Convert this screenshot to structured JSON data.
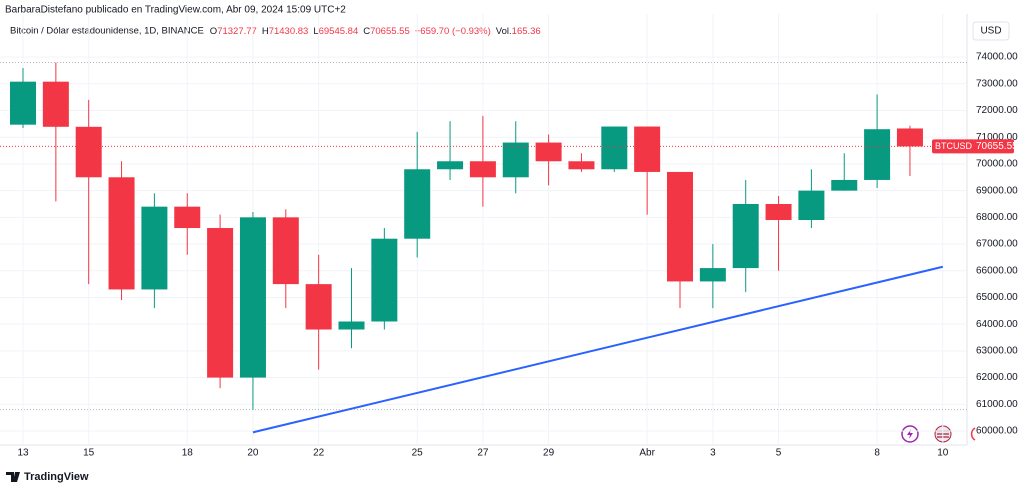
{
  "header": "BarbaraDistefano publicado en TradingView.com, Abr 09, 2024 15:09 UTC+2",
  "footer": "TradingView",
  "chart_data": {
    "type": "candlestick",
    "title": "Bitcoin / Dólar estadounidense, 1D, BINANCE",
    "info": [
      {
        "key": "O",
        "value": "71327.77"
      },
      {
        "key": "H",
        "value": "71430.83"
      },
      {
        "key": "L",
        "value": "69545.84"
      },
      {
        "key": "C",
        "value": "70655.55"
      },
      {
        "value": "−659.70 (−0.93%)"
      },
      {
        "key": "Vol.",
        "value": "165.36"
      }
    ],
    "currency": "USD",
    "categories": [
      "13",
      null,
      "15",
      null,
      null,
      "18",
      null,
      "20",
      null,
      "22",
      null,
      null,
      "25",
      null,
      "27",
      null,
      "29",
      null,
      null,
      "Abr",
      null,
      "3",
      null,
      "5",
      null,
      null,
      "8",
      null,
      "10"
    ],
    "open": [
      71470,
      73080,
      71390,
      69500,
      65300,
      68400,
      67600,
      62000,
      68000,
      65500,
      63800,
      64100,
      67200,
      69800,
      70100,
      69500,
      70800,
      70100,
      69800,
      71400,
      69700,
      65600,
      66100,
      68500,
      67900,
      69000,
      69400,
      71327.77,
      null
    ],
    "high": [
      73590,
      73800,
      72400,
      70100,
      68900,
      68900,
      68100,
      68200,
      68300,
      66600,
      66100,
      67600,
      71200,
      71600,
      71800,
      71600,
      71100,
      70400,
      71400,
      71400,
      69700,
      67000,
      69400,
      68800,
      69800,
      70400,
      72600,
      71430.83,
      null
    ],
    "low": [
      71344,
      68600,
      65500,
      64900,
      64600,
      66600,
      61600,
      60800,
      64600,
      62300,
      63100,
      63800,
      66500,
      69400,
      68400,
      68900,
      69200,
      69700,
      69700,
      68100,
      64600,
      64600,
      65200,
      66000,
      67600,
      69000,
      69100,
      69545.84,
      null
    ],
    "close": [
      73080,
      71390,
      69500,
      65300,
      68400,
      67600,
      62000,
      68000,
      65500,
      63800,
      64100,
      67200,
      69800,
      70100,
      69500,
      70800,
      70100,
      69800,
      71400,
      69700,
      65600,
      66100,
      68500,
      67900,
      69000,
      69400,
      71300,
      70655.55,
      null
    ],
    "up_color": "#089981",
    "down_color": "#f23645",
    "ylim": [
      59476,
      75389
    ],
    "yticks": [
      {
        "value": 60000,
        "label": "60000.00"
      },
      {
        "value": 61000,
        "label": "61000.00"
      },
      {
        "value": 62000,
        "label": "62000.00"
      },
      {
        "value": 63000,
        "label": "63000.00"
      },
      {
        "value": 64000,
        "label": "64000.00"
      },
      {
        "value": 65000,
        "label": "65000.00"
      },
      {
        "value": 66000,
        "label": "66000.00"
      },
      {
        "value": 67000,
        "label": "67000.00"
      },
      {
        "value": 68000,
        "label": "68000.00"
      },
      {
        "value": 69000,
        "label": "69000.00"
      },
      {
        "value": 70000,
        "label": "70000.00"
      },
      {
        "value": 71000,
        "label": "71000.00"
      },
      {
        "value": 72000,
        "label": "72000.00"
      },
      {
        "value": 73000,
        "label": "73000.00"
      },
      {
        "value": 74000,
        "label": "74000.00"
      }
    ],
    "grid": true,
    "last_price": {
      "label": "BTCUSD",
      "value": 70655.55,
      "color": "#f23645"
    },
    "trendline": {
      "color": "#2962ff",
      "x": [
        7,
        28
      ],
      "values": [
        59950,
        66150
      ]
    }
  }
}
